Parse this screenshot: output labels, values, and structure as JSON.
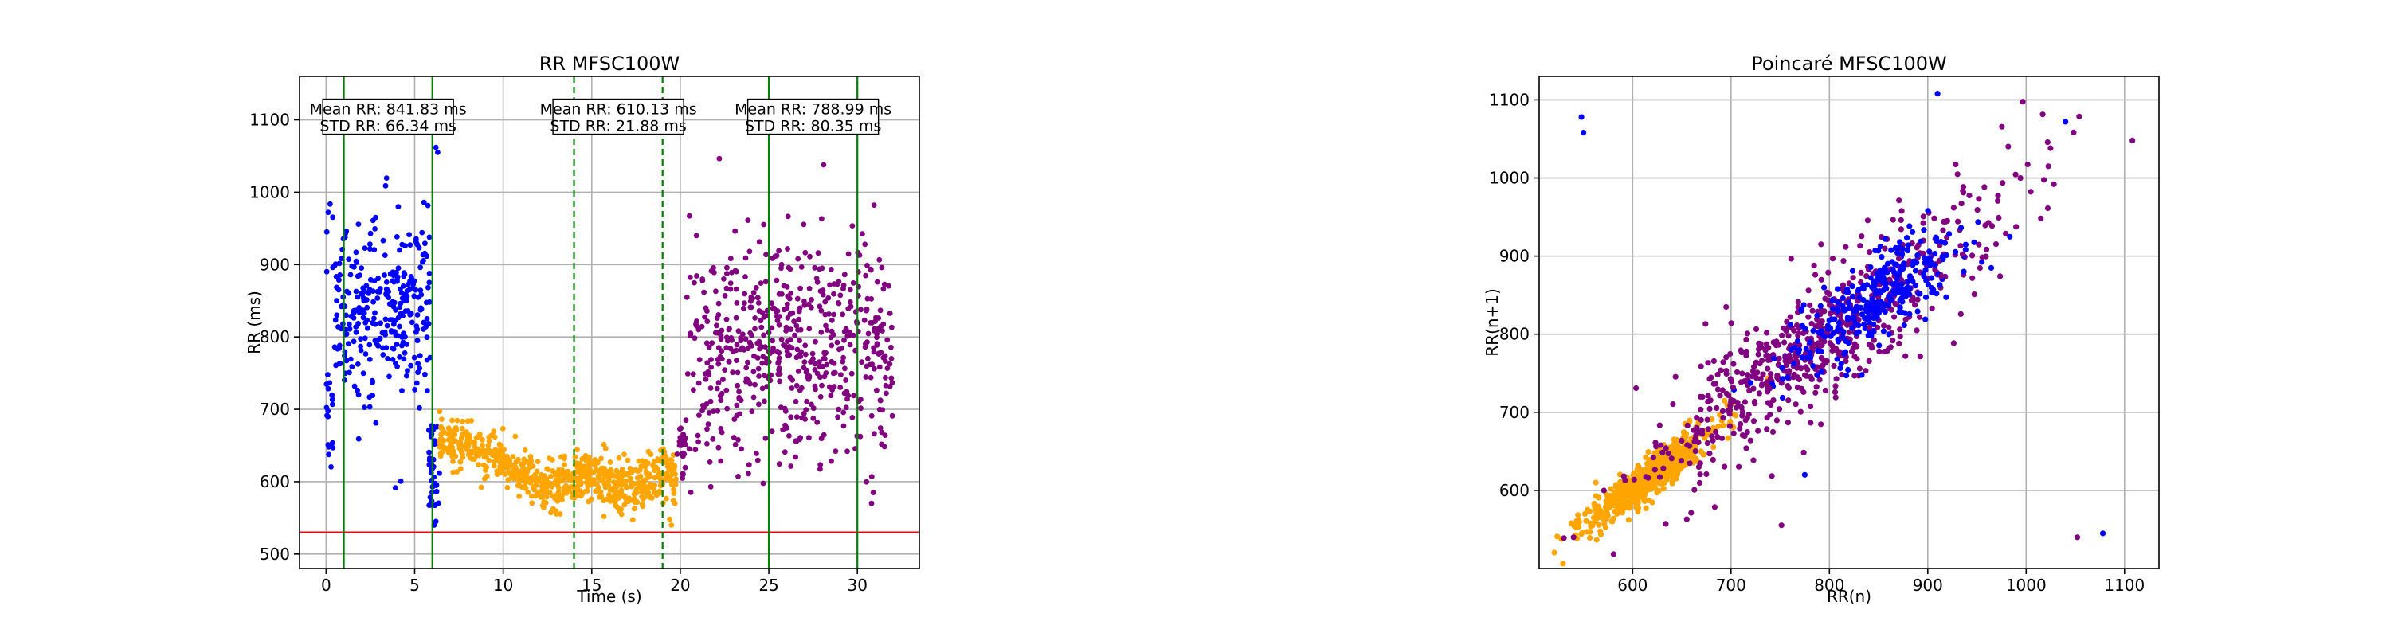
{
  "colors": {
    "seg1": "#0000ff",
    "seg2": "#ffa500",
    "seg3": "#800080",
    "boundary": "#008000",
    "threshold": "#ff0000",
    "grid": "#b0b0b0"
  },
  "chart_data": [
    {
      "type": "scatter",
      "title": "RR MFSC100W",
      "xlabel": "Time (s)",
      "ylabel": "RR (ms)",
      "xlim": [
        -1.5,
        33.5
      ],
      "ylim": [
        480,
        1160
      ],
      "xticks": [
        0,
        5,
        10,
        15,
        20,
        25,
        30
      ],
      "yticks": [
        500,
        600,
        700,
        800,
        900,
        1000,
        1100
      ],
      "grid": true,
      "segments": [
        {
          "color": "#0000ff",
          "t_start": 0.0,
          "t_end": 6.4,
          "mean_rr": 841.83,
          "std_rr": 66.34,
          "points": 330
        },
        {
          "color": "#ffa500",
          "t_start": 6.4,
          "t_end": 19.8,
          "mean_rr": 610.13,
          "std_rr": 21.88,
          "points": 680
        },
        {
          "color": "#800080",
          "t_start": 19.8,
          "t_end": 32.0,
          "mean_rr": 788.99,
          "std_rr": 80.35,
          "points": 600
        }
      ],
      "vlines": [
        {
          "x": 1.0,
          "style": "solid",
          "color": "#008000"
        },
        {
          "x": 6.0,
          "style": "solid",
          "color": "#008000"
        },
        {
          "x": 14.0,
          "style": "dashed",
          "color": "#008000"
        },
        {
          "x": 19.0,
          "style": "dashed",
          "color": "#008000"
        },
        {
          "x": 25.0,
          "style": "solid",
          "color": "#008000"
        },
        {
          "x": 30.0,
          "style": "solid",
          "color": "#008000"
        }
      ],
      "hline": {
        "y": 530,
        "color": "#ff0000"
      },
      "annotations": [
        {
          "x": 3.5,
          "y": 1100,
          "lines": [
            "Mean RR: 841.83 ms",
            "STD RR: 66.34 ms"
          ]
        },
        {
          "x": 16.5,
          "y": 1100,
          "lines": [
            "Mean RR: 610.13 ms",
            "STD RR: 21.88 ms"
          ]
        },
        {
          "x": 27.5,
          "y": 1100,
          "lines": [
            "Mean RR: 788.99 ms",
            "STD RR: 80.35 ms"
          ]
        }
      ]
    },
    {
      "type": "scatter",
      "title": "Poincaré MFSC100W",
      "xlabel": "RR(n)",
      "ylabel": "RR(n+1)",
      "xlim": [
        505,
        1135
      ],
      "ylim": [
        500,
        1130
      ],
      "xticks": [
        600,
        700,
        800,
        900,
        1000,
        1100
      ],
      "yticks": [
        600,
        700,
        800,
        900,
        1000,
        1100
      ],
      "grid": true,
      "series": [
        {
          "color": "#ffa500",
          "center": [
            615,
            615
          ],
          "spread_along": 32,
          "spread_across": 9,
          "points": 680
        },
        {
          "color": "#800080",
          "center": [
            790,
            790
          ],
          "spread_along": 85,
          "spread_across": 28,
          "points": 600
        },
        {
          "color": "#0000ff",
          "center": [
            845,
            845
          ],
          "spread_along": 45,
          "spread_across": 20,
          "points": 330
        }
      ],
      "outliers": [
        {
          "x": 548,
          "y": 1078
        },
        {
          "x": 550,
          "y": 1058
        },
        {
          "x": 1052,
          "y": 540
        },
        {
          "x": 1078,
          "y": 545
        },
        {
          "x": 910,
          "y": 1108
        },
        {
          "x": 1108,
          "y": 1048
        },
        {
          "x": 1040,
          "y": 1072
        },
        {
          "x": 775,
          "y": 620
        },
        {
          "x": 540,
          "y": 540
        }
      ]
    }
  ]
}
